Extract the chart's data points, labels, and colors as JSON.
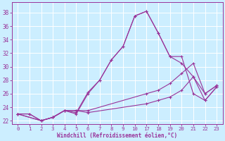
{
  "xlabel": "Windchill (Refroidissement éolien,°C)",
  "bg_color": "#cceeff",
  "grid_color": "#ffffff",
  "line_color": "#993399",
  "xticklabels": [
    "0",
    "1",
    "2",
    "3",
    "4",
    "5",
    "6",
    "7",
    "8",
    "9",
    "10",
    "17",
    "18",
    "19",
    "20",
    "21",
    "22",
    "23"
  ],
  "yticks": [
    22,
    24,
    26,
    28,
    30,
    32,
    34,
    36,
    38
  ],
  "ymin": 21.5,
  "ymax": 39.5,
  "curves": [
    {
      "xi": [
        0,
        1,
        2,
        3,
        4,
        5,
        6,
        7,
        8,
        9,
        10,
        11,
        12,
        13,
        14,
        15,
        16,
        17
      ],
      "y": [
        23,
        23,
        22,
        22.5,
        23.5,
        23,
        26,
        28,
        31,
        33,
        37.5,
        38.2,
        35,
        31.5,
        31.5,
        26,
        25,
        27
      ]
    },
    {
      "xi": [
        0,
        1,
        2,
        3,
        4,
        5,
        6,
        7,
        8,
        9,
        10,
        11,
        12,
        13,
        14,
        15,
        16,
        17
      ],
      "y": [
        23,
        23,
        22,
        22.5,
        23.5,
        23.2,
        26.2,
        28,
        31,
        33,
        37.5,
        38.2,
        35,
        31.5,
        30.5,
        28.5,
        26,
        27.2
      ]
    },
    {
      "xi": [
        0,
        2,
        3,
        4,
        5,
        6,
        11,
        12,
        13,
        14,
        15,
        16,
        17
      ],
      "y": [
        23,
        22,
        22.5,
        23.5,
        23.5,
        23.5,
        26,
        26.5,
        27.5,
        29,
        30.5,
        26,
        27.2
      ]
    },
    {
      "xi": [
        0,
        2,
        3,
        4,
        5,
        6,
        11,
        12,
        13,
        14,
        15,
        16,
        17
      ],
      "y": [
        23,
        22,
        22.5,
        23.5,
        23.5,
        23.2,
        24.5,
        25,
        25.5,
        26.5,
        28.5,
        25,
        27
      ]
    }
  ]
}
